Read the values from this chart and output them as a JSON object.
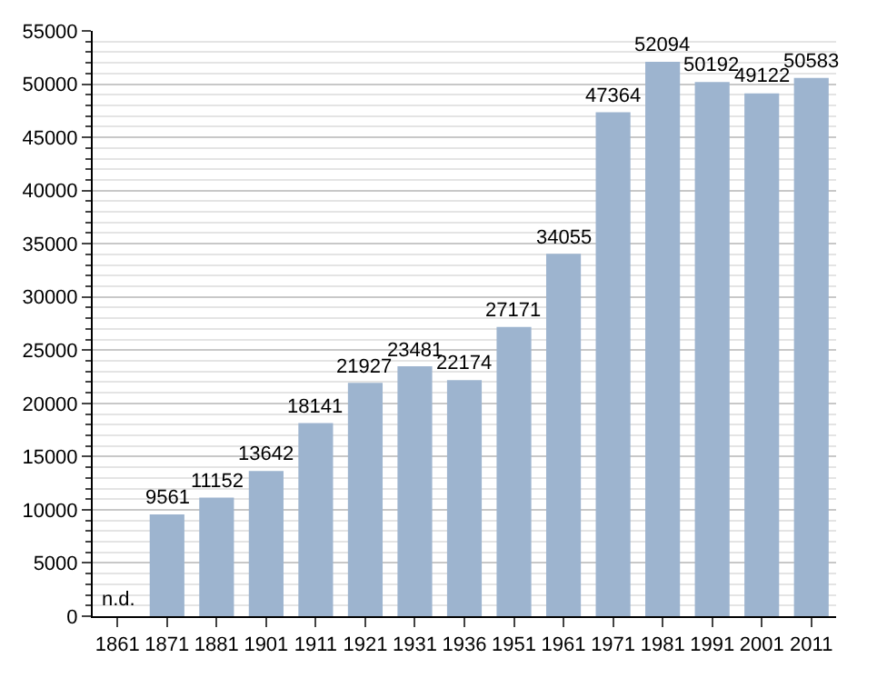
{
  "chart_data": {
    "type": "bar",
    "categories": [
      "1861",
      "1871",
      "1881",
      "1901",
      "1911",
      "1921",
      "1931",
      "1936",
      "1951",
      "1961",
      "1971",
      "1981",
      "1991",
      "2001",
      "2011"
    ],
    "values": [
      null,
      9561,
      11152,
      13642,
      18141,
      21927,
      23481,
      22174,
      27171,
      34055,
      47364,
      52094,
      50192,
      49122,
      50583
    ],
    "value_labels": [
      "n.d.",
      "9561",
      "11152",
      "13642",
      "18141",
      "21927",
      "23481",
      "22174",
      "27171",
      "34055",
      "47364",
      "52094",
      "50192",
      "49122",
      "50583"
    ],
    "color": "#9db4cf",
    "ylim": [
      0,
      55000
    ],
    "yticks": [
      0,
      5000,
      10000,
      15000,
      20000,
      25000,
      30000,
      35000,
      40000,
      45000,
      50000,
      55000
    ],
    "grid": "y"
  }
}
